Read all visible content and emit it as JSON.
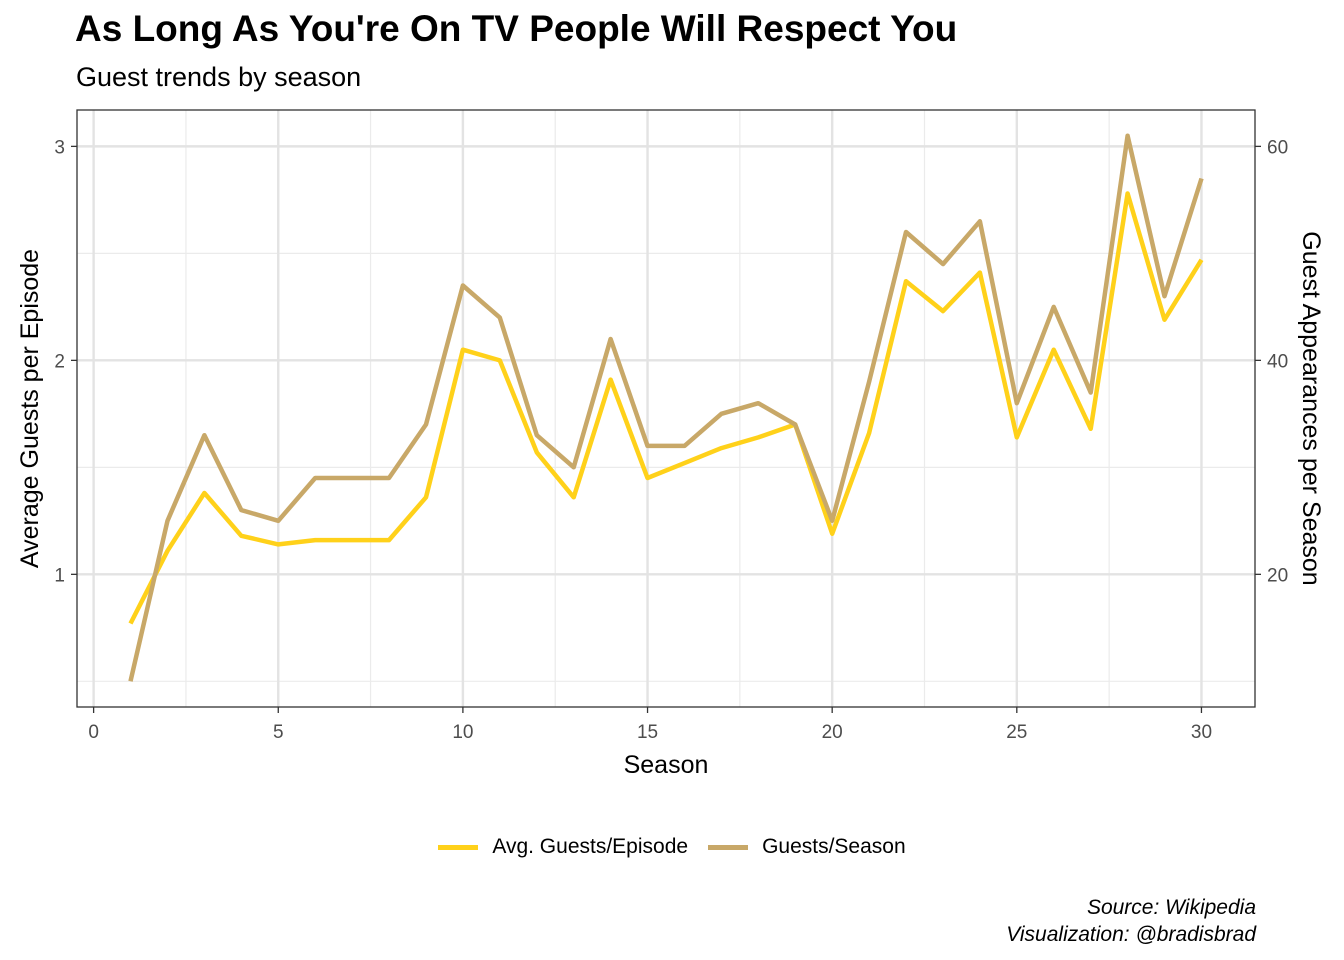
{
  "title": "As Long As You're On TV People Will Respect You",
  "subtitle": "Guest trends by season",
  "caption": {
    "line1": "Source: Wikipedia",
    "line2": "Visualization: @bradisbrad"
  },
  "chart_data": {
    "type": "line",
    "xlabel": "Season",
    "ylabel": "Average Guests per Episode",
    "y2label": "Guest Appearances per Season",
    "xlim": [
      -0.45,
      31.45
    ],
    "ylim": [
      0.38,
      3.17
    ],
    "y2lim": [
      7.6,
      63.4
    ],
    "xticks": [
      0,
      5,
      10,
      15,
      20,
      25,
      30
    ],
    "yticks": [
      1,
      2,
      3
    ],
    "y2ticks": [
      20,
      40,
      60
    ],
    "grid": true,
    "legend_position": "bottom",
    "series": [
      {
        "name": "Avg. Guests/Episode",
        "axis": "left",
        "color": "#FFD11A",
        "x": [
          1,
          2,
          3,
          4,
          5,
          6,
          7,
          8,
          9,
          10,
          11,
          12,
          13,
          14,
          15,
          16,
          17,
          18,
          19,
          20,
          21,
          22,
          23,
          24,
          25,
          26,
          27,
          28,
          29,
          30
        ],
        "values": [
          0.77,
          1.11,
          1.38,
          1.18,
          1.14,
          1.16,
          1.16,
          1.16,
          1.36,
          2.05,
          2.0,
          1.57,
          1.36,
          1.91,
          1.45,
          1.52,
          1.59,
          1.64,
          1.7,
          1.19,
          1.66,
          2.37,
          2.23,
          2.41,
          1.64,
          2.05,
          1.68,
          2.78,
          2.19,
          2.47
        ]
      },
      {
        "name": "Guests/Season",
        "axis": "right",
        "color": "#C8A868",
        "x": [
          1,
          2,
          3,
          4,
          5,
          6,
          7,
          8,
          9,
          10,
          11,
          12,
          13,
          14,
          15,
          16,
          17,
          18,
          19,
          20,
          21,
          22,
          23,
          24,
          25,
          26,
          27,
          28,
          29,
          30
        ],
        "values": [
          10,
          25,
          33,
          26,
          25,
          29,
          29,
          29,
          34,
          47,
          44,
          33,
          30,
          42,
          32,
          32,
          35,
          36,
          34,
          25,
          38,
          52,
          49,
          53,
          36,
          45,
          37,
          61,
          46,
          57
        ]
      }
    ]
  }
}
